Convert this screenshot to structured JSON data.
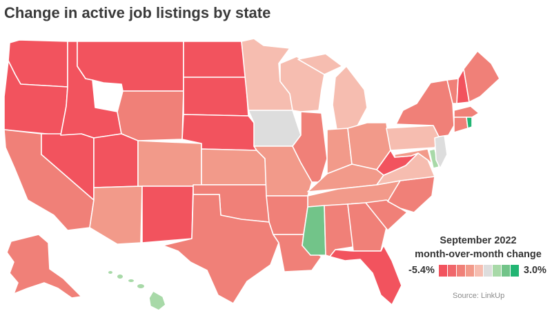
{
  "title": "Change in active job listings by state",
  "legend": {
    "title_line1": "September 2022",
    "title_line2": "month-over-month change",
    "min_label": "-5.4%",
    "max_label": "3.0%",
    "colors": [
      "#f2535e",
      "#f0676b",
      "#f08078",
      "#f29a8a",
      "#f6bdb0",
      "#dddddd",
      "#a8d9a8",
      "#72c489",
      "#22b573"
    ]
  },
  "source": "Source: LinkUp",
  "map_data": {
    "metric": "month-over-month change in active job listings",
    "classes": {
      "strong_decline": "#f2535e",
      "decline": "#f08078",
      "mild_decline": "#f29a8a",
      "slight_decline": "#f6bdb0",
      "no_change": "#dddddd",
      "mild_increase": "#a8d9a8",
      "increase": "#72c489",
      "strong_increase": "#22b573"
    },
    "states": {
      "WA": "strong_decline",
      "OR": "strong_decline",
      "ID": "strong_decline",
      "MT": "strong_decline",
      "ND": "strong_decline",
      "SD": "strong_decline",
      "NE": "strong_decline",
      "NV": "strong_decline",
      "UT": "strong_decline",
      "NM": "strong_decline",
      "WV": "strong_decline",
      "FL": "strong_decline",
      "NH": "strong_decline",
      "CA": "decline",
      "WY": "decline",
      "TX": "decline",
      "OK": "decline",
      "LA": "decline",
      "AR": "decline",
      "IL": "decline",
      "AL": "decline",
      "GA": "decline",
      "SC": "decline",
      "NC": "decline",
      "NY": "decline",
      "ME": "decline",
      "VT": "decline",
      "MA": "decline",
      "CT": "decline",
      "AK": "decline",
      "AZ": "mild_decline",
      "CO": "mild_decline",
      "KS": "mild_decline",
      "MO": "mild_decline",
      "IN": "mild_decline",
      "OH": "mild_decline",
      "TN": "mild_decline",
      "KY": "mild_decline",
      "MD": "mild_decline",
      "MN": "slight_decline",
      "WI": "slight_decline",
      "MI": "slight_decline",
      "VA": "slight_decline",
      "PA": "slight_decline",
      "IA": "no_change",
      "NJ": "no_change",
      "DE": "mild_increase",
      "HI": "mild_increase",
      "MS": "increase",
      "RI": "strong_increase"
    }
  }
}
